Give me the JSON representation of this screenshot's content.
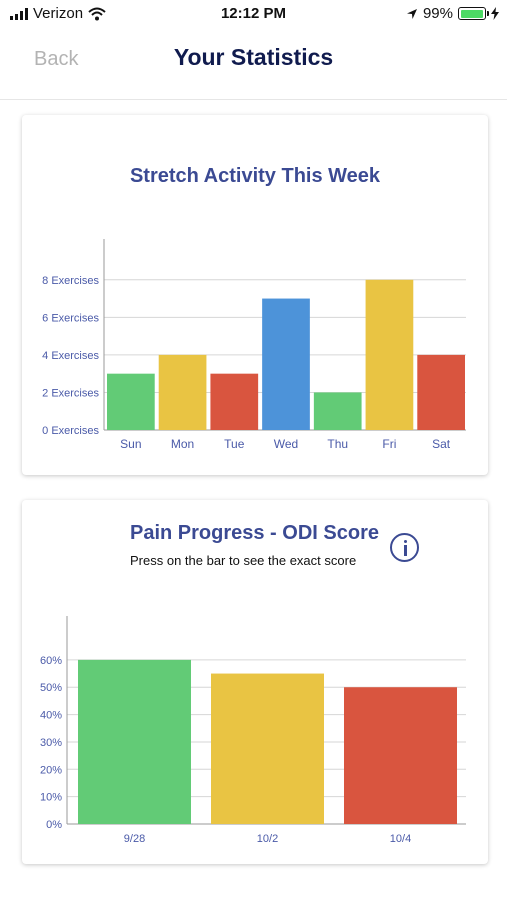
{
  "status_bar": {
    "carrier": "Verizon",
    "time": "12:12 PM",
    "battery": "99%"
  },
  "nav": {
    "back_label": "Back",
    "title": "Your Statistics"
  },
  "stretch_card": {
    "title": "Stretch Activity This Week"
  },
  "pain_card": {
    "title": "Pain Progress - ODI Score",
    "subtitle": "Press on the bar to see the exact score"
  },
  "colors": {
    "green": "#62cb76",
    "yellow": "#e9c443",
    "red": "#d9553f",
    "blue": "#4d93d9",
    "axis_text": "#4a5aa8",
    "title": "#3b4a93",
    "nav_title": "#101b4e"
  },
  "chart_data": [
    {
      "type": "bar",
      "title": "Stretch Activity This Week",
      "categories": [
        "Sun",
        "Mon",
        "Tue",
        "Wed",
        "Thu",
        "Fri",
        "Sat"
      ],
      "values": [
        3,
        4,
        3,
        7,
        2,
        8,
        4
      ],
      "bar_colors": [
        "green",
        "yellow",
        "red",
        "blue",
        "green",
        "yellow",
        "red"
      ],
      "ytick_values": [
        0,
        2,
        4,
        6,
        8
      ],
      "ytick_labels": [
        "0 Exercises",
        "2 Exercises",
        "4 Exercises",
        "6 Exercises",
        "8 Exercises"
      ],
      "ylim": [
        0,
        9
      ],
      "grid": true
    },
    {
      "type": "bar",
      "title": "Pain Progress - ODI Score",
      "categories": [
        "9/28",
        "10/2",
        "10/4"
      ],
      "values": [
        60,
        55,
        50
      ],
      "bar_colors": [
        "green",
        "yellow",
        "red"
      ],
      "ytick_values": [
        0,
        10,
        20,
        30,
        40,
        50,
        60
      ],
      "ytick_labels": [
        "0%",
        "10%",
        "20%",
        "30%",
        "40%",
        "50%",
        "60%"
      ],
      "ylim": [
        0,
        68
      ],
      "grid": true
    }
  ]
}
